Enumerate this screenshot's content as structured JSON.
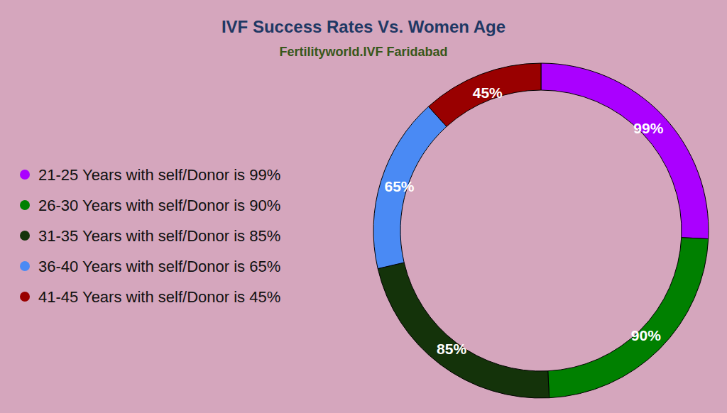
{
  "chart_data": {
    "type": "pie",
    "title": "IVF Success Rates Vs. Women Age",
    "subtitle": "Fertilityworld.IVF Faridabad",
    "categories": [
      "21-25 Years with self/Donor is 99%",
      "26-30 Years with self/Donor is 90%",
      "31-35 Years with self/Donor is 85%",
      "36-40 Years with self/Donor is 65%",
      "41-45 Years with self/Donor is 45%"
    ],
    "values": [
      99,
      90,
      85,
      65,
      45
    ],
    "value_labels": [
      "99%",
      "90%",
      "85%",
      "65%",
      "45%"
    ],
    "colors": [
      "#aa00ff",
      "#008000",
      "#14330a",
      "#4a8af4",
      "#990000"
    ],
    "data_labels": true,
    "legend": "left"
  }
}
